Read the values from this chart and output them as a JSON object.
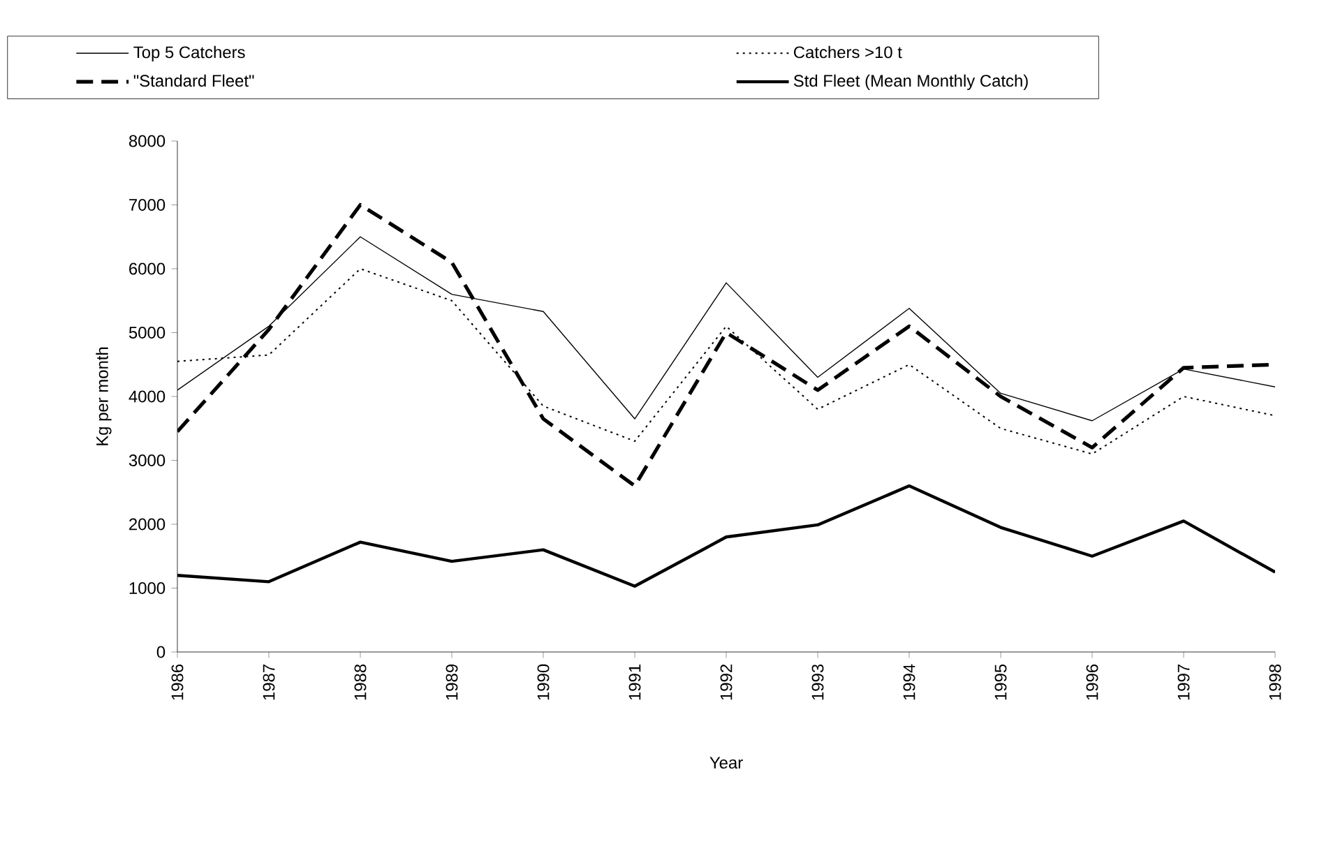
{
  "chart_data": {
    "type": "line",
    "xlabel": "Year",
    "ylabel": "Kg per month",
    "categories": [
      "1986",
      "1987",
      "1988",
      "1989",
      "1990",
      "1991",
      "1992",
      "1993",
      "1994",
      "1995",
      "1996",
      "1997",
      "1998"
    ],
    "series": [
      {
        "name": "Top 5 Catchers",
        "color": "#000000",
        "line_style": "solid",
        "values": [
          4100,
          5100,
          6500,
          5600,
          5330,
          3650,
          5780,
          4300,
          5380,
          4050,
          3620,
          4430,
          4150
        ]
      },
      {
        "name": "Catchers >10 t",
        "color": "#000000",
        "line_style": "dotted",
        "values": [
          4550,
          4650,
          6000,
          5500,
          3850,
          3300,
          5100,
          3800,
          4500,
          3500,
          3100,
          4000,
          3700
        ]
      },
      {
        "name": "\"Standard Fleet\"",
        "color": "#000000",
        "line_style": "dashed",
        "values": [
          3450,
          5050,
          7000,
          6100,
          3650,
          2600,
          5000,
          4100,
          5100,
          4000,
          3200,
          4450,
          4500
        ]
      },
      {
        "name": "Std Fleet (Mean Monthly Catch)",
        "color": "#000000",
        "line_style": "solid",
        "values": [
          1200,
          1100,
          1720,
          1420,
          1600,
          1030,
          1800,
          1990,
          2600,
          1950,
          1500,
          2050,
          1250
        ]
      }
    ],
    "ylim": [
      0,
      8000
    ],
    "yticks": [
      0,
      1000,
      2000,
      3000,
      4000,
      5000,
      6000,
      7000,
      8000
    ],
    "grid": false,
    "legend": "top",
    "marker": "none"
  }
}
